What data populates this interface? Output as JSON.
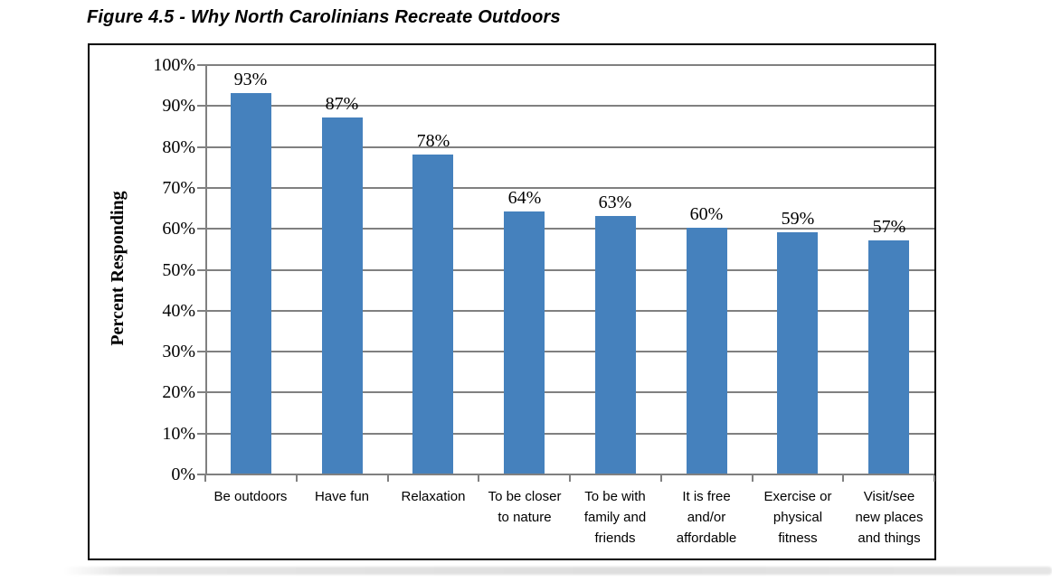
{
  "figure": {
    "caption": "Figure 4.5 - Why North Carolinians Recreate Outdoors"
  },
  "chart_data": {
    "type": "bar",
    "title": "Figure 4.5 - Why North Carolinians Recreate Outdoors",
    "xlabel": "",
    "ylabel": "Percent Responding",
    "categories": [
      "Be outdoors",
      "Have fun",
      "Relaxation",
      "To be closer\nto nature",
      "To be with\nfamily and\nfriends",
      "It is free\nand/or\naffordable",
      "Exercise or\nphysical\nfitness",
      "Visit/see\nnew places\nand things"
    ],
    "values": [
      93,
      87,
      78,
      64,
      63,
      60,
      59,
      57
    ],
    "data_labels": [
      "93%",
      "87%",
      "78%",
      "64%",
      "63%",
      "60%",
      "59%",
      "57%"
    ],
    "ylim": [
      0,
      100
    ],
    "ytick_step": 10,
    "ytick_labels": [
      "0%",
      "10%",
      "20%",
      "30%",
      "40%",
      "50%",
      "60%",
      "70%",
      "80%",
      "90%",
      "100%"
    ],
    "grid": true,
    "legend": "none",
    "colors": {
      "bar": "#4581BD",
      "gridline": "#808080",
      "axis": "#808080",
      "frame_border": "#000000",
      "text": "#000000"
    }
  }
}
